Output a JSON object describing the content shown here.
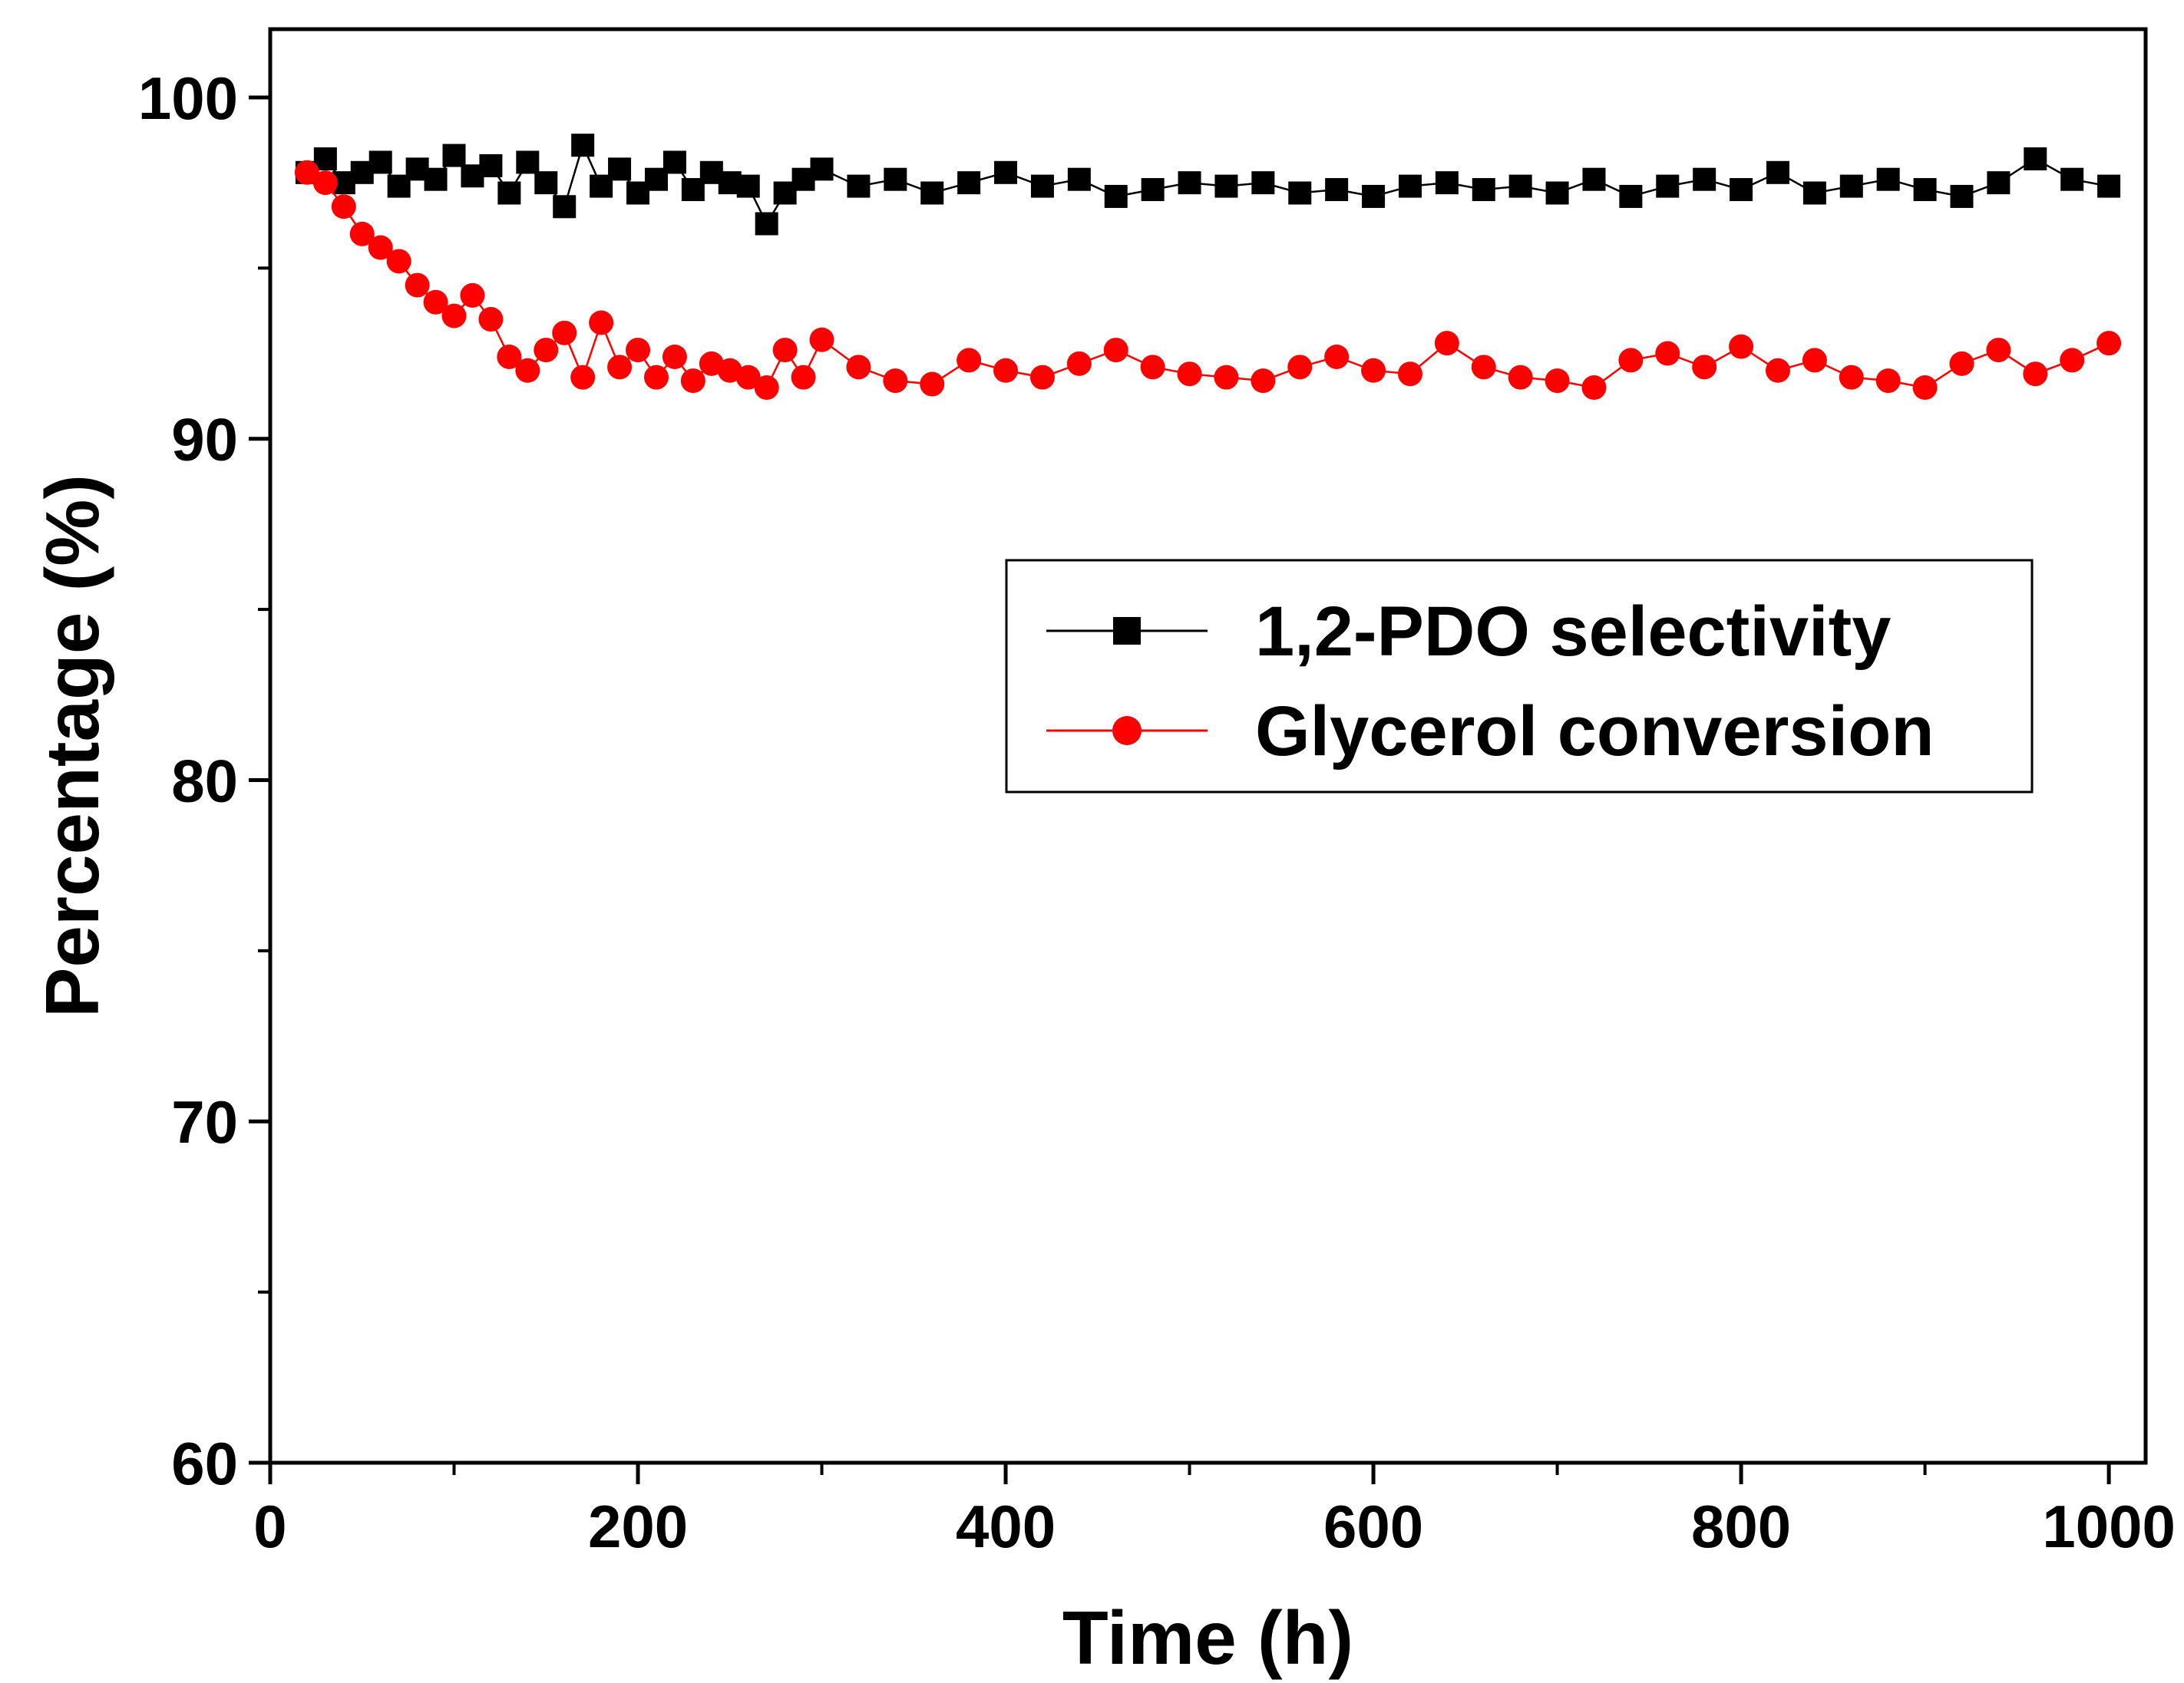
{
  "chart_data": {
    "type": "line",
    "title": "",
    "xlabel": "Time (h)",
    "ylabel": "Percentage (%)",
    "xlim": [
      0,
      1020
    ],
    "ylim": [
      60,
      102
    ],
    "xticks": [
      0,
      200,
      400,
      600,
      800,
      1000
    ],
    "xtick_labels": [
      "0",
      "200",
      "400",
      "600",
      "800",
      "1000"
    ],
    "yticks": [
      60,
      70,
      80,
      90,
      100
    ],
    "ytick_labels": [
      "60",
      "70",
      "80",
      "90",
      "100"
    ],
    "grid": false,
    "legend_position": "center-right",
    "series": [
      {
        "name": "1,2-PDO selectivity",
        "marker": "square",
        "color": "#000000",
        "x": [
          20,
          30,
          40,
          50,
          60,
          70,
          80,
          90,
          100,
          110,
          120,
          130,
          140,
          150,
          160,
          170,
          180,
          190,
          200,
          210,
          220,
          230,
          240,
          250,
          260,
          270,
          280,
          290,
          300,
          320,
          340,
          360,
          380,
          400,
          420,
          440,
          460,
          480,
          500,
          520,
          540,
          560,
          580,
          600,
          620,
          640,
          660,
          680,
          700,
          720,
          740,
          760,
          780,
          800,
          820,
          840,
          860,
          880,
          900,
          920,
          940,
          960,
          980,
          1000
        ],
        "values": [
          97.8,
          98.2,
          97.5,
          97.8,
          98.1,
          97.4,
          97.9,
          97.6,
          98.3,
          97.7,
          98.0,
          97.2,
          98.1,
          97.5,
          96.8,
          98.6,
          97.4,
          97.9,
          97.2,
          97.6,
          98.1,
          97.3,
          97.8,
          97.5,
          97.4,
          96.3,
          97.2,
          97.6,
          97.9,
          97.4,
          97.6,
          97.2,
          97.5,
          97.8,
          97.4,
          97.6,
          97.1,
          97.3,
          97.5,
          97.4,
          97.5,
          97.2,
          97.3,
          97.1,
          97.4,
          97.5,
          97.3,
          97.4,
          97.2,
          97.6,
          97.1,
          97.4,
          97.6,
          97.3,
          97.8,
          97.2,
          97.4,
          97.6,
          97.3,
          97.1,
          97.5,
          98.2,
          97.6,
          97.4
        ]
      },
      {
        "name": "Glycerol conversion",
        "marker": "circle",
        "color": "#ff0000",
        "x": [
          20,
          30,
          40,
          50,
          60,
          70,
          80,
          90,
          100,
          110,
          120,
          130,
          140,
          150,
          160,
          170,
          180,
          190,
          200,
          210,
          220,
          230,
          240,
          250,
          260,
          270,
          280,
          290,
          300,
          320,
          340,
          360,
          380,
          400,
          420,
          440,
          460,
          480,
          500,
          520,
          540,
          560,
          580,
          600,
          620,
          640,
          660,
          680,
          700,
          720,
          740,
          760,
          780,
          800,
          820,
          840,
          860,
          880,
          900,
          920,
          940,
          960,
          980,
          1000
        ],
        "values": [
          97.8,
          97.5,
          96.8,
          96.0,
          95.6,
          95.2,
          94.5,
          94.0,
          93.6,
          94.2,
          93.5,
          92.4,
          92.0,
          92.6,
          93.1,
          91.8,
          93.4,
          92.1,
          92.6,
          91.8,
          92.4,
          91.7,
          92.2,
          92.0,
          91.8,
          91.5,
          92.6,
          91.8,
          92.9,
          92.1,
          91.7,
          91.6,
          92.3,
          92.0,
          91.8,
          92.2,
          92.6,
          92.1,
          91.9,
          91.8,
          91.7,
          92.1,
          92.4,
          92.0,
          91.9,
          92.8,
          92.1,
          91.8,
          91.7,
          91.5,
          92.3,
          92.5,
          92.1,
          92.7,
          92.0,
          92.3,
          91.8,
          91.7,
          91.5,
          92.2,
          92.6,
          91.9,
          92.3,
          92.8
        ]
      }
    ]
  }
}
